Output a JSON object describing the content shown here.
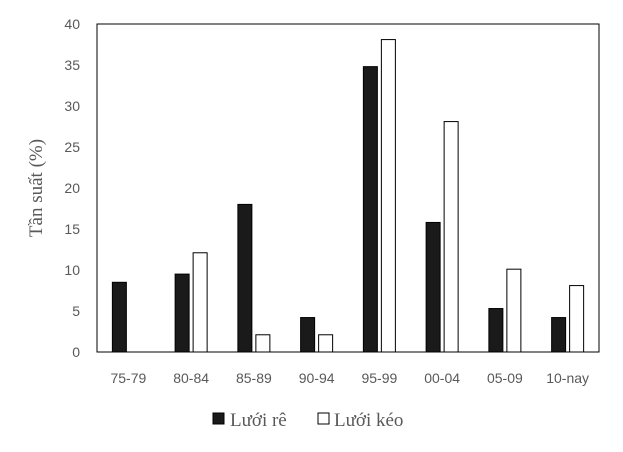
{
  "chart_data": {
    "type": "bar",
    "title": "",
    "xlabel": "",
    "ylabel": "Tần suất (%)",
    "categories": [
      "75-79",
      "80-84",
      "85-89",
      "90-94",
      "95-99",
      "00-04",
      "05-09",
      "10-nay"
    ],
    "series": [
      {
        "name": "Lưới rê",
        "values": [
          8.5,
          9.5,
          18,
          4.2,
          34.8,
          15.8,
          5.3,
          4.2
        ],
        "color": "#1a1a1a"
      },
      {
        "name": "Lưới kéo",
        "values": [
          0,
          12.1,
          2.1,
          2.1,
          38.1,
          28.1,
          10.1,
          8.1
        ],
        "color": "#ffffff"
      }
    ],
    "ylim": [
      0,
      40
    ],
    "yticks": [
      0,
      5,
      10,
      15,
      20,
      25,
      30,
      35,
      40
    ],
    "grid": false,
    "legend": "bottom"
  }
}
